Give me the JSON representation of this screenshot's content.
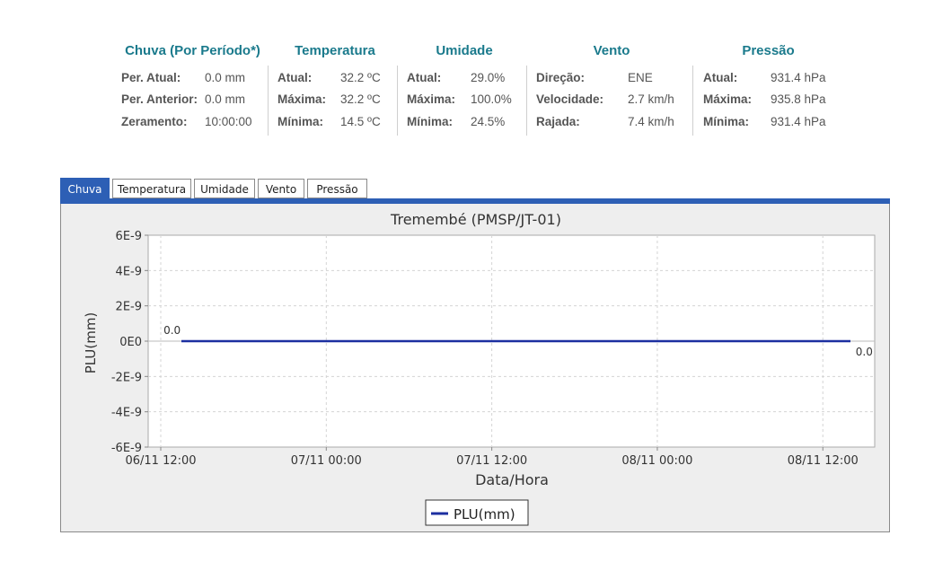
{
  "summary": {
    "chuva": {
      "title": "Chuva (Por Período*)",
      "rows": [
        {
          "label": "Per. Atual:",
          "value": "0.0 mm"
        },
        {
          "label": "Per. Anterior:",
          "value": "0.0 mm"
        },
        {
          "label": "Zeramento:",
          "value": "10:00:00"
        }
      ]
    },
    "temperatura": {
      "title": "Temperatura",
      "rows": [
        {
          "label": "Atual:",
          "value": "32.2 ºC"
        },
        {
          "label": "Máxima:",
          "value": "32.2 ºC"
        },
        {
          "label": "Mínima:",
          "value": "14.5 ºC"
        }
      ]
    },
    "umidade": {
      "title": "Umidade",
      "rows": [
        {
          "label": "Atual:",
          "value": "29.0%"
        },
        {
          "label": "Máxima:",
          "value": "100.0%"
        },
        {
          "label": "Mínima:",
          "value": "24.5%"
        }
      ]
    },
    "vento": {
      "title": "Vento",
      "rows": [
        {
          "label": "Direção:",
          "value": "ENE"
        },
        {
          "label": "Velocidade:",
          "value": "2.7 km/h"
        },
        {
          "label": "Rajada:",
          "value": "7.4 km/h"
        }
      ]
    },
    "pressao": {
      "title": "Pressão",
      "rows": [
        {
          "label": "Atual:",
          "value": "931.4 hPa"
        },
        {
          "label": "Máxima:",
          "value": "935.8 hPa"
        },
        {
          "label": "Mínima:",
          "value": "931.4 hPa"
        }
      ]
    }
  },
  "tabs": [
    {
      "label": "Chuva",
      "active": true
    },
    {
      "label": "Temperatura",
      "active": false
    },
    {
      "label": "Umidade",
      "active": false
    },
    {
      "label": "Vento",
      "active": false
    },
    {
      "label": "Pressão",
      "active": false
    }
  ],
  "colors": {
    "accent": "#2d5fb5",
    "heading": "#1a7a8c",
    "series": "#1c2fa0"
  },
  "chart_data": {
    "type": "line",
    "title": "Tremembé (PMSP/JT-01)",
    "xlabel": "Data/Hora",
    "ylabel": "PLU(mm)",
    "y_ticks": [
      {
        "value": 6e-09,
        "label": "6E-9"
      },
      {
        "value": 4e-09,
        "label": "4E-9"
      },
      {
        "value": 2e-09,
        "label": "2E-9"
      },
      {
        "value": 0,
        "label": "0E0"
      },
      {
        "value": -2e-09,
        "label": "-2E-9"
      },
      {
        "value": -4e-09,
        "label": "-4E-9"
      },
      {
        "value": -6e-09,
        "label": "-6E-9"
      }
    ],
    "ylim": [
      -6e-09,
      6e-09
    ],
    "x_ticks": [
      "06/11 12:00",
      "07/11 00:00",
      "07/11 12:00",
      "08/11 00:00",
      "08/11 12:00"
    ],
    "xlim_hours": [
      0,
      51.5
    ],
    "grid": true,
    "legend": "bottom-center",
    "series": [
      {
        "name": "PLU(mm)",
        "color": "#1c2fa0",
        "x_hours": [
          1.5,
          50.0
        ],
        "values": [
          0,
          0
        ]
      }
    ],
    "annotations": [
      {
        "text": "0.0",
        "x_hours": 0.2,
        "value": 0,
        "position": "above"
      },
      {
        "text": "0.0",
        "x_hours": 51.0,
        "value": 0,
        "position": "below"
      }
    ]
  }
}
